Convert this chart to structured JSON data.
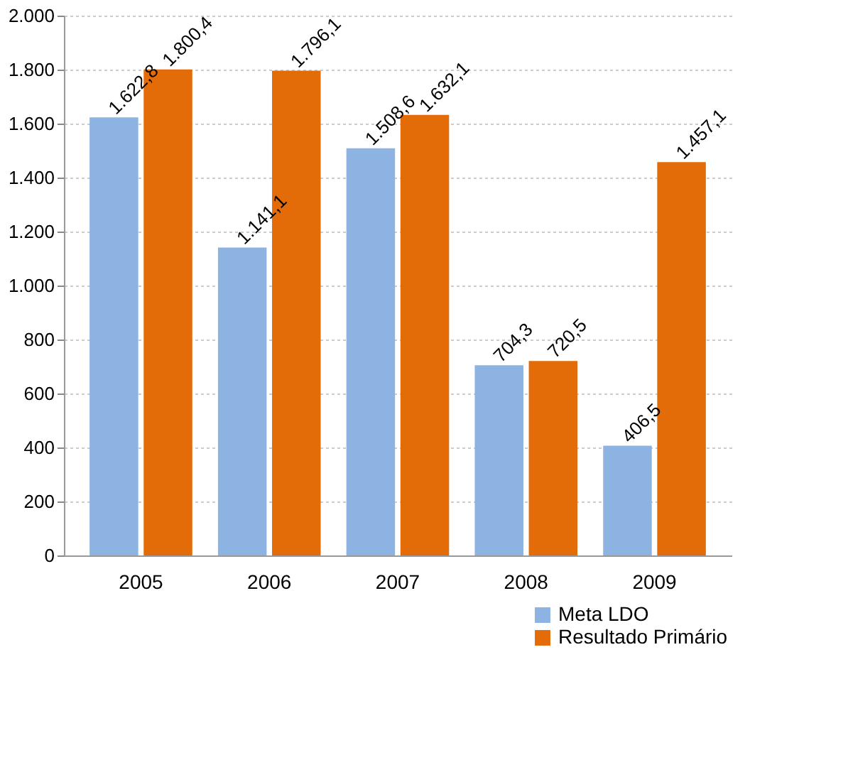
{
  "chart_data": {
    "type": "bar",
    "categories": [
      "2005",
      "2006",
      "2007",
      "2008",
      "2009"
    ],
    "series": [
      {
        "name": "Meta LDO",
        "color": "#8db3e2",
        "values": [
          1622.8,
          1141.1,
          1508.6,
          704.3,
          406.5
        ],
        "value_labels": [
          "1.622,8",
          "1.141,1",
          "1.508,6",
          "704,3",
          "406,5"
        ]
      },
      {
        "name": "Resultado Primário",
        "color": "#e36c09",
        "values": [
          1800.4,
          1796.1,
          1632.1,
          720.5,
          1457.1
        ],
        "value_labels": [
          "1.800,4",
          "1.796,1",
          "1.632,1",
          "720,5",
          "1.457,1"
        ]
      }
    ],
    "ylim": [
      0,
      2000
    ],
    "yticks": [
      0,
      200,
      400,
      {
        "value": 600,
        "label": "600"
      },
      800,
      {
        "value": 1000,
        "label": "1.000"
      },
      {
        "value": 1200,
        "label": "1.200"
      },
      {
        "value": 1400,
        "label": "1.400"
      },
      {
        "value": 1600,
        "label": "1.600"
      },
      {
        "value": 1800,
        "label": "1.800"
      },
      {
        "value": 2000,
        "label": "2.000"
      }
    ],
    "grid": "y",
    "legend": "bottom right"
  }
}
